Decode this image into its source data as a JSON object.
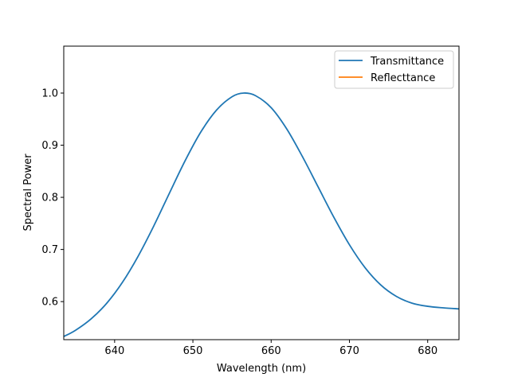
{
  "chart_data": {
    "type": "line",
    "title": "",
    "xlabel": "Wavelength  (nm)",
    "ylabel": "Spectral Power",
    "xlim": [
      633.5,
      684
    ],
    "ylim": [
      0.527,
      1.09
    ],
    "xticks": [
      640,
      650,
      660,
      670,
      680
    ],
    "xtick_labels": [
      "640",
      "650",
      "660",
      "670",
      "680"
    ],
    "yticks": [
      0.6,
      0.7,
      0.8,
      0.9,
      1.0
    ],
    "ytick_labels": [
      "0.6",
      "0.7",
      "0.8",
      "0.9",
      "1.0"
    ],
    "grid": false,
    "legend_position": "upper right",
    "series": [
      {
        "name": "Transmittance",
        "color": "#1f77b4",
        "x": [
          633.5,
          635,
          637,
          639,
          641,
          643,
          645,
          647,
          649,
          651,
          653,
          655,
          656.5,
          658,
          660,
          662,
          664,
          666,
          668,
          670,
          672,
          674,
          676,
          678,
          680,
          682,
          684
        ],
        "y": [
          0.533,
          0.545,
          0.567,
          0.597,
          0.637,
          0.687,
          0.745,
          0.808,
          0.87,
          0.925,
          0.967,
          0.993,
          1.0,
          0.995,
          0.972,
          0.931,
          0.878,
          0.82,
          0.762,
          0.709,
          0.665,
          0.632,
          0.61,
          0.597,
          0.591,
          0.588,
          0.586
        ]
      },
      {
        "name": "Reflecttance",
        "color": "#ff7f0e",
        "x": [],
        "y": []
      }
    ]
  }
}
